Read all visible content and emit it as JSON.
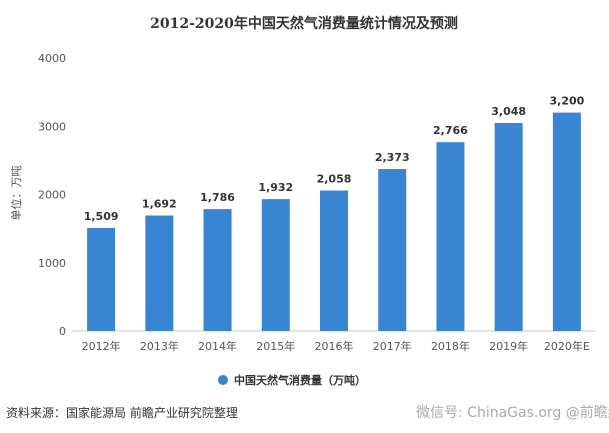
{
  "chart_data": {
    "type": "bar",
    "title": "2012-2020年中国天然气消费量统计情况及预测",
    "ylabel": "单位：万吨",
    "xlabel": "",
    "ylim": [
      0,
      4000
    ],
    "yticks": [
      "0",
      "1000",
      "2000",
      "3000",
      "4000"
    ],
    "grid": false,
    "categories": [
      "2012年",
      "2013年",
      "2014年",
      "2015年",
      "2016年",
      "2017年",
      "2018年",
      "2019年",
      "2020年E"
    ],
    "series": [
      {
        "name": "中国天然气消费量（万吨）",
        "values": [
          1509,
          1692,
          1786,
          1932,
          2058,
          2373,
          2766,
          3048,
          3200
        ],
        "labels": [
          "1,509",
          "1,692",
          "1,786",
          "1,932",
          "2,058",
          "2,373",
          "2,766",
          "3,048",
          "3,200"
        ]
      }
    ],
    "legend": "bottom-center",
    "bar_color": "#3a85d2"
  },
  "source": "资料来源：国家能源局 前瞻产业研究院整理",
  "watermark": "微信号: ChinaGas.org @前瞻经济学人APP"
}
